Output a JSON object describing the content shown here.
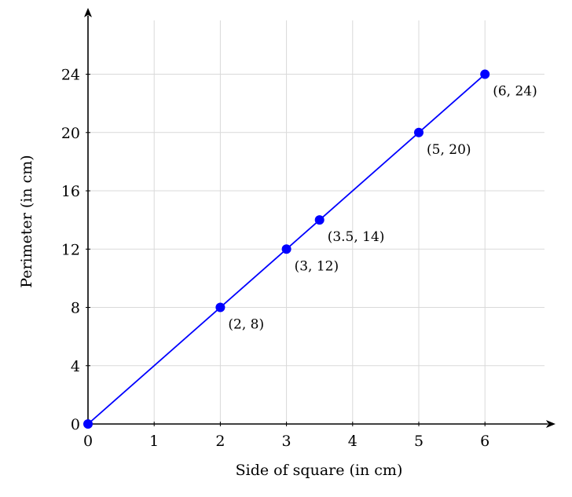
{
  "chart_data": {
    "type": "line",
    "title": "",
    "xlabel": "Side of square (in cm)",
    "ylabel": "Perimeter (in cm)",
    "xlim": [
      0,
      6.9
    ],
    "ylim": [
      0,
      27.8
    ],
    "x_ticks": [
      0,
      1,
      2,
      3,
      4,
      5,
      6
    ],
    "y_ticks": [
      0,
      4,
      8,
      12,
      16,
      20,
      24
    ],
    "grid": true,
    "colors": {
      "line": "#0000ff",
      "grid": "#d9d9d9",
      "axis": "#000000"
    },
    "series": [
      {
        "points": [
          {
            "x": 0,
            "y": 0,
            "label": ""
          },
          {
            "x": 2,
            "y": 8,
            "label": "(2, 8)"
          },
          {
            "x": 3,
            "y": 12,
            "label": "(3, 12)"
          },
          {
            "x": 3.5,
            "y": 14,
            "label": "(3.5, 14)"
          },
          {
            "x": 5,
            "y": 20,
            "label": "(5, 20)"
          },
          {
            "x": 6,
            "y": 24,
            "label": "(6, 24)"
          }
        ]
      }
    ]
  }
}
